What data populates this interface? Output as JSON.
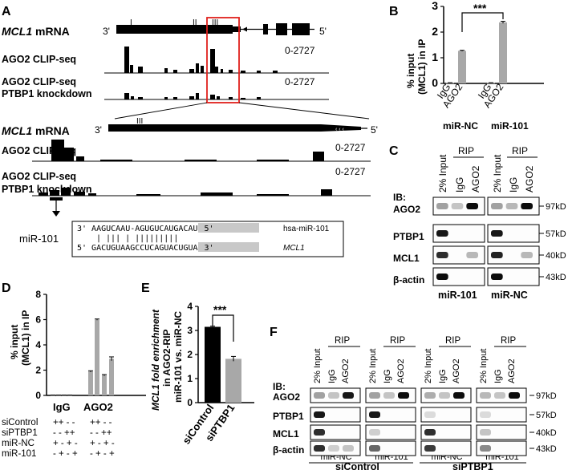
{
  "panelA": {
    "label": "A",
    "gene_label": "MCL1",
    "mrna_suffix": " mRNA",
    "prime3": "3'",
    "prime5": "5'",
    "exon_numerals": [
      "I",
      "II",
      "III"
    ],
    "track1_label": "AGO2 CLIP-seq",
    "track2_label_line1": "AGO2 CLIP-seq",
    "track2_label_line2": "PTBP1 knockdown",
    "range": "0-2727",
    "zoom_numeral": "III",
    "mir_label": "miR-101",
    "duplex_top_prime3": "3'",
    "duplex_top_seq_a": "AAGUCAAU-AGU",
    "duplex_top_seq_b": "GUCAUGACAU",
    "duplex_top_prime5": "5'",
    "duplex_top_name": "hsa-miR-101",
    "duplex_pairs": "| |||  | |||||||||",
    "duplex_bot_prime5": "5'",
    "duplex_bot_seq_a": "GACUGUAAGCCU",
    "duplex_bot_seq_b": "CAGUACUGUA",
    "duplex_bot_prime3": "3'",
    "duplex_bot_name": "MCL1"
  },
  "panelB": {
    "label": "B",
    "ylabel_line1": "% input",
    "ylabel_line2": "(MCL1) in IP",
    "yticks": [
      "0",
      "1",
      "2",
      "3"
    ],
    "groups": [
      "miR-NC",
      "miR-101"
    ],
    "significance": "***"
  },
  "panelC": {
    "label": "C",
    "lanes": [
      "2% Input",
      "IgG",
      "AGO2",
      "2% Input",
      "IgG",
      "AGO2"
    ],
    "rip_label": "RIP",
    "ib_label": "IB:",
    "rows": [
      "AGO2",
      "PTBP1",
      "MCL1",
      "β-actin"
    ],
    "sizes": [
      "97kD",
      "57kD",
      "40kD",
      "43kD"
    ],
    "groups": [
      "miR-101",
      "miR-NC"
    ]
  },
  "panelD": {
    "label": "D",
    "ylabel_line1": "% input",
    "ylabel_line2": "(MCL1) in IP",
    "yticks": [
      "0",
      "2",
      "4",
      "6",
      "8"
    ],
    "groups": [
      "IgG",
      "AGO2"
    ],
    "row_labels": [
      "siControl",
      "siPTBP1",
      "miR-NC",
      "miR-101"
    ],
    "row_signs": [
      "++ - -",
      "- - ++",
      "+ - + -",
      "- + - +"
    ]
  },
  "panelE": {
    "label": "E",
    "ylabel_line1": "MCL1 fold enrichment",
    "ylabel_line2": "in AGO2-RIP",
    "ylabel_line3": "miR-101 vs. miR-NC",
    "yticks": [
      "0",
      "1",
      "2",
      "3",
      "4"
    ],
    "significance": "***"
  },
  "panelF": {
    "label": "F",
    "lanes": [
      "2% Input",
      "IgG",
      "AGO2"
    ],
    "rip_label": "RIP",
    "ib_label": "IB:",
    "rows": [
      "AGO2",
      "PTBP1",
      "MCL1",
      "β-actin"
    ],
    "sizes": [
      "97kD",
      "57kD",
      "40kD",
      "43kD"
    ],
    "mir_groups": [
      "miR-NC",
      "miR-101",
      "miR-NC",
      "miR-101"
    ],
    "si_groups": [
      "siControl",
      "siPTBP1"
    ]
  },
  "chart_data": [
    {
      "type": "bar",
      "panel": "B",
      "categories": [
        "IgG",
        "AGO2",
        "IgG",
        "AGO2"
      ],
      "groups": [
        "miR-NC",
        "miR-NC",
        "miR-101",
        "miR-101"
      ],
      "values": [
        0.02,
        1.27,
        0.02,
        2.38
      ],
      "errors": [
        0.01,
        0.02,
        0.01,
        0.04
      ],
      "ylim": [
        0,
        3
      ],
      "color": "#a8a8a8"
    },
    {
      "type": "bar",
      "panel": "D",
      "categories": [
        "IgG",
        "IgG",
        "IgG",
        "IgG",
        "AGO2",
        "AGO2",
        "AGO2",
        "AGO2"
      ],
      "values": [
        0.02,
        0.02,
        0.02,
        0.02,
        1.9,
        6.0,
        1.6,
        2.9
      ],
      "errors": [
        0.01,
        0.01,
        0.01,
        0.01,
        0.05,
        0.05,
        0.05,
        0.15
      ],
      "ylim": [
        0,
        8
      ],
      "color": "#a8a8a8"
    },
    {
      "type": "bar",
      "panel": "E",
      "categories": [
        "siControl",
        "siPTBP1"
      ],
      "values": [
        3.15,
        1.82
      ],
      "errors": [
        0.03,
        0.1
      ],
      "ylim": [
        0,
        4
      ],
      "colors": [
        "#000000",
        "#a8a8a8"
      ]
    }
  ]
}
